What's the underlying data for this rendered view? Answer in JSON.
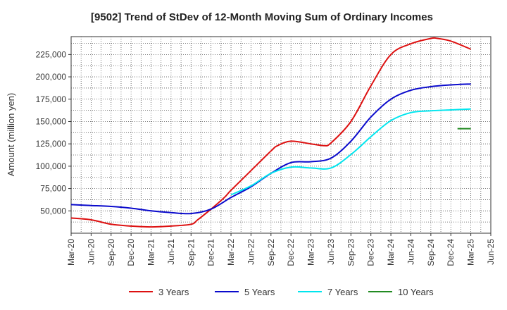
{
  "chart_data": {
    "type": "line",
    "title": "[9502]  Trend of StDev of 12-Month Moving Sum of Ordinary Incomes",
    "ylabel": "Amount (million yen)",
    "xlabel": "",
    "ylim": [
      25000,
      245000
    ],
    "yticks": [
      50000,
      75000,
      100000,
      125000,
      150000,
      175000,
      200000,
      225000
    ],
    "ytick_labels": [
      "50,000",
      "75,000",
      "100,000",
      "125,000",
      "150,000",
      "175,000",
      "200,000",
      "225,000"
    ],
    "xticks": [
      "Mar-20",
      "Jun-20",
      "Sep-20",
      "Dec-20",
      "Mar-21",
      "Jun-21",
      "Sep-21",
      "Dec-21",
      "Mar-22",
      "Jun-22",
      "Sep-22",
      "Dec-22",
      "Mar-23",
      "Jun-23",
      "Sep-23",
      "Dec-23",
      "Mar-24",
      "Jun-24",
      "Sep-24",
      "Dec-24",
      "Mar-25",
      "Jun-25"
    ],
    "grid": true,
    "legend_position": "bottom",
    "series": [
      {
        "name": "3 Years",
        "color": "#dd1111",
        "x": [
          "Mar-20",
          "Jun-20",
          "Sep-20",
          "Dec-20",
          "Mar-21",
          "Jun-21",
          "Sep-21",
          "Oct-21",
          "Dec-21",
          "Feb-22",
          "Mar-22",
          "Jun-22",
          "Sep-22",
          "Oct-22",
          "Dec-22",
          "Mar-23",
          "May-23",
          "Jun-23",
          "Sep-23",
          "Dec-23",
          "Mar-24",
          "Jun-24",
          "Sep-24",
          "Oct-24",
          "Dec-24",
          "Mar-25"
        ],
        "values": [
          42000,
          40000,
          35000,
          33000,
          32000,
          33000,
          35000,
          40000,
          52000,
          65000,
          73000,
          95000,
          117000,
          123000,
          128000,
          125000,
          123000,
          126000,
          150000,
          190000,
          225000,
          237000,
          243000,
          243000,
          240000,
          231000
        ]
      },
      {
        "name": "5 Years",
        "color": "#0a0acc",
        "x": [
          "Mar-20",
          "Jun-20",
          "Sep-20",
          "Dec-20",
          "Mar-21",
          "Jun-21",
          "Sep-21",
          "Dec-21",
          "Mar-22",
          "Jun-22",
          "Sep-22",
          "Dec-22",
          "Mar-23",
          "Jun-23",
          "Sep-23",
          "Dec-23",
          "Mar-24",
          "Jun-24",
          "Sep-24",
          "Dec-24",
          "Mar-25"
        ],
        "values": [
          57000,
          56000,
          55000,
          53000,
          50000,
          48000,
          47000,
          52000,
          65000,
          77000,
          92000,
          104000,
          105000,
          109000,
          128000,
          155000,
          175000,
          185000,
          189000,
          191000,
          192000
        ]
      },
      {
        "name": "7 Years",
        "color": "#00e5ee",
        "x": [
          "Mar-22",
          "Jun-22",
          "Sep-22",
          "Dec-22",
          "Mar-23",
          "Jun-23",
          "Sep-23",
          "Dec-23",
          "Mar-24",
          "Jun-24",
          "Sep-24",
          "Dec-24",
          "Mar-25"
        ],
        "values": [
          68000,
          78000,
          92000,
          99000,
          98000,
          98000,
          113000,
          133000,
          151000,
          160000,
          162000,
          163000,
          164000
        ]
      },
      {
        "name": "10 Years",
        "color": "#228b22",
        "x": [
          "Jan-25",
          "Mar-25"
        ],
        "values": [
          142000,
          142000
        ]
      }
    ]
  }
}
